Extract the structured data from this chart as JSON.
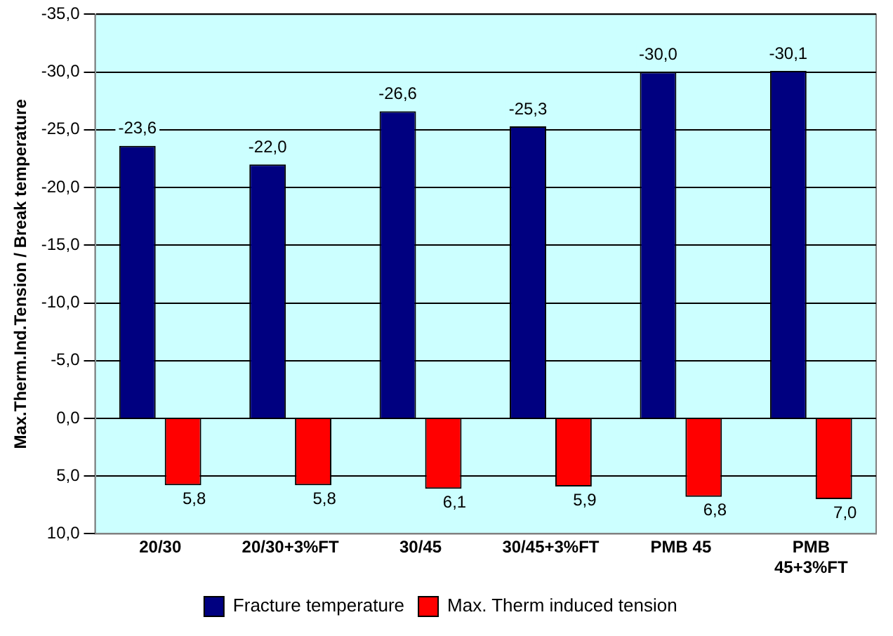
{
  "chart_data": {
    "type": "bar",
    "ylabel": "Max.Therm.Ind.Tension / Break temperature",
    "categories": [
      "20/30",
      "20/30+3%FT",
      "30/45",
      "30/45+3%FT",
      "PMB 45",
      "PMB 45+3%FT"
    ],
    "series": [
      {
        "name": "Fracture temperature",
        "color": "#000080",
        "values": [
          -23.6,
          -22.0,
          -26.6,
          -25.3,
          -30.0,
          -30.1
        ],
        "value_labels": [
          "-23,6",
          "-22,0",
          "-26,6",
          "-25,3",
          "-30,0",
          "-30,1"
        ]
      },
      {
        "name": "Max. Therm induced tension",
        "color": "#ff0000",
        "values": [
          5.8,
          5.8,
          6.1,
          5.9,
          6.8,
          7.0
        ],
        "value_labels": [
          "5,8",
          "5,8",
          "6,1",
          "5,9",
          "6,8",
          "7,0"
        ]
      }
    ],
    "ylim": [
      10,
      -35
    ],
    "yticks": [
      {
        "value": -35,
        "label": "-35,0"
      },
      {
        "value": -30,
        "label": "-30,0"
      },
      {
        "value": -25,
        "label": "-25,0"
      },
      {
        "value": -20,
        "label": "-20,0"
      },
      {
        "value": -15,
        "label": "-15,0"
      },
      {
        "value": -10,
        "label": "-10,0"
      },
      {
        "value": -5,
        "label": "-5,0"
      },
      {
        "value": 0,
        "label": "0,0"
      },
      {
        "value": 5,
        "label": "5,0"
      },
      {
        "value": 10,
        "label": "10,0"
      }
    ],
    "grid": "y",
    "legend": "bottom"
  }
}
